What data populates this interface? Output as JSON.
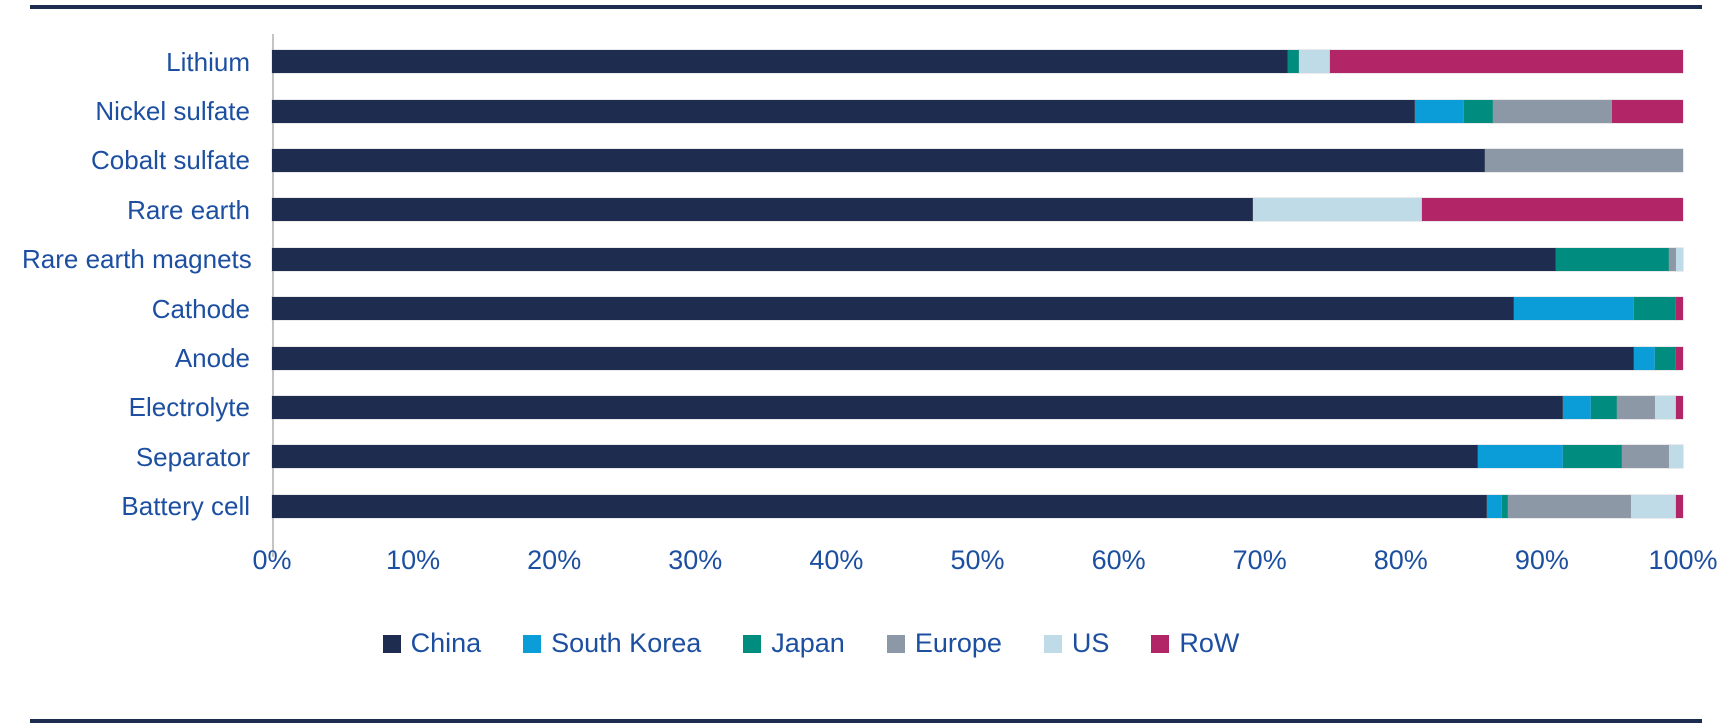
{
  "colors": {
    "rule": "#1e2c4f",
    "label_text": "#1d4fa1",
    "axis_line": "#c4c4c4",
    "background": "#ffffff"
  },
  "chart_data": {
    "type": "bar",
    "orientation": "horizontal",
    "stacked": true,
    "unit": "percent market share",
    "title": "",
    "xlabel": "",
    "ylabel": "",
    "xlim": [
      0,
      100
    ],
    "grid": false,
    "legend_position": "bottom",
    "x_ticks": [
      "0%",
      "10%",
      "20%",
      "30%",
      "40%",
      "50%",
      "60%",
      "70%",
      "80%",
      "90%",
      "100%"
    ],
    "categories": [
      "Lithium",
      "Nickel sulfate",
      "Cobalt sulfate",
      "Rare earth",
      "Rare earth magnets",
      "Cathode",
      "Anode",
      "Electrolyte",
      "Separator",
      "Battery cell"
    ],
    "series": [
      {
        "name": "China",
        "color": "#1e2c4f",
        "values": [
          72,
          81,
          86,
          69.5,
          91,
          88,
          96.5,
          91.5,
          85.5,
          86.1
        ]
      },
      {
        "name": "South Korea",
        "color": "#0a9dd8",
        "values": [
          0,
          3.5,
          0,
          0,
          0,
          8.5,
          1.5,
          2,
          6,
          1.1
        ]
      },
      {
        "name": "Japan",
        "color": "#008d7f",
        "values": [
          0.8,
          2,
          0,
          0,
          8,
          3,
          1.5,
          1.8,
          4.2,
          0.4
        ]
      },
      {
        "name": "Europe",
        "color": "#8d98a7",
        "values": [
          0,
          8.5,
          14,
          0,
          0.5,
          0,
          0,
          2.7,
          3.3,
          8.7
        ]
      },
      {
        "name": "US",
        "color": "#bfdbe7",
        "values": [
          2.2,
          0,
          0,
          12,
          0.5,
          0,
          0,
          1.5,
          1,
          3.2
        ]
      },
      {
        "name": "RoW",
        "color": "#b22667",
        "values": [
          25,
          5,
          0,
          18.5,
          0,
          0.5,
          0.5,
          0.5,
          0,
          0.5
        ]
      }
    ]
  }
}
